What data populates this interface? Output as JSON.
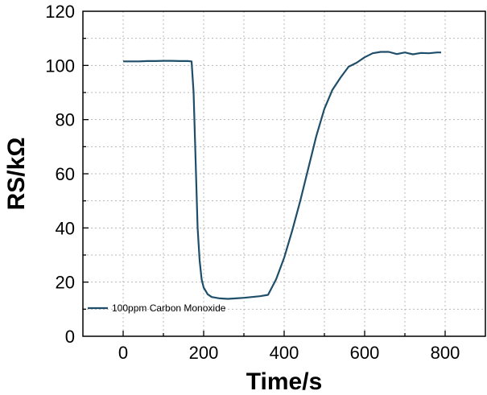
{
  "chart_data": {
    "type": "line",
    "title": "",
    "xlabel": "Time/s",
    "ylabel": "RS/kΩ",
    "xlim": [
      -100,
      900
    ],
    "ylim": [
      0,
      120
    ],
    "xticks": [
      0,
      200,
      400,
      600,
      800
    ],
    "yticks": [
      0,
      20,
      40,
      60,
      80,
      100,
      120
    ],
    "grid": true,
    "legend_position": "bottom-left",
    "series": [
      {
        "name": "100ppm Carbon Monoxide",
        "color": "#1f4e6b",
        "x": [
          0,
          20,
          40,
          60,
          80,
          100,
          120,
          140,
          160,
          170,
          175,
          180,
          185,
          190,
          195,
          200,
          210,
          220,
          240,
          260,
          280,
          300,
          320,
          340,
          360,
          380,
          400,
          420,
          440,
          460,
          480,
          500,
          520,
          540,
          560,
          580,
          600,
          620,
          640,
          660,
          680,
          700,
          720,
          740,
          760,
          780,
          790
        ],
        "y": [
          101.5,
          101.5,
          101.5,
          101.6,
          101.6,
          101.7,
          101.7,
          101.6,
          101.6,
          101.5,
          90,
          65,
          40,
          28,
          21,
          18,
          15.5,
          14.5,
          14,
          13.8,
          14,
          14.2,
          14.5,
          14.8,
          15.3,
          21,
          29,
          39,
          50,
          62,
          74,
          84,
          91,
          95.5,
          99.5,
          101,
          103,
          104.5,
          105,
          105,
          104.2,
          104.8,
          104.1,
          104.6,
          104.5,
          104.8,
          104.8
        ]
      }
    ]
  }
}
